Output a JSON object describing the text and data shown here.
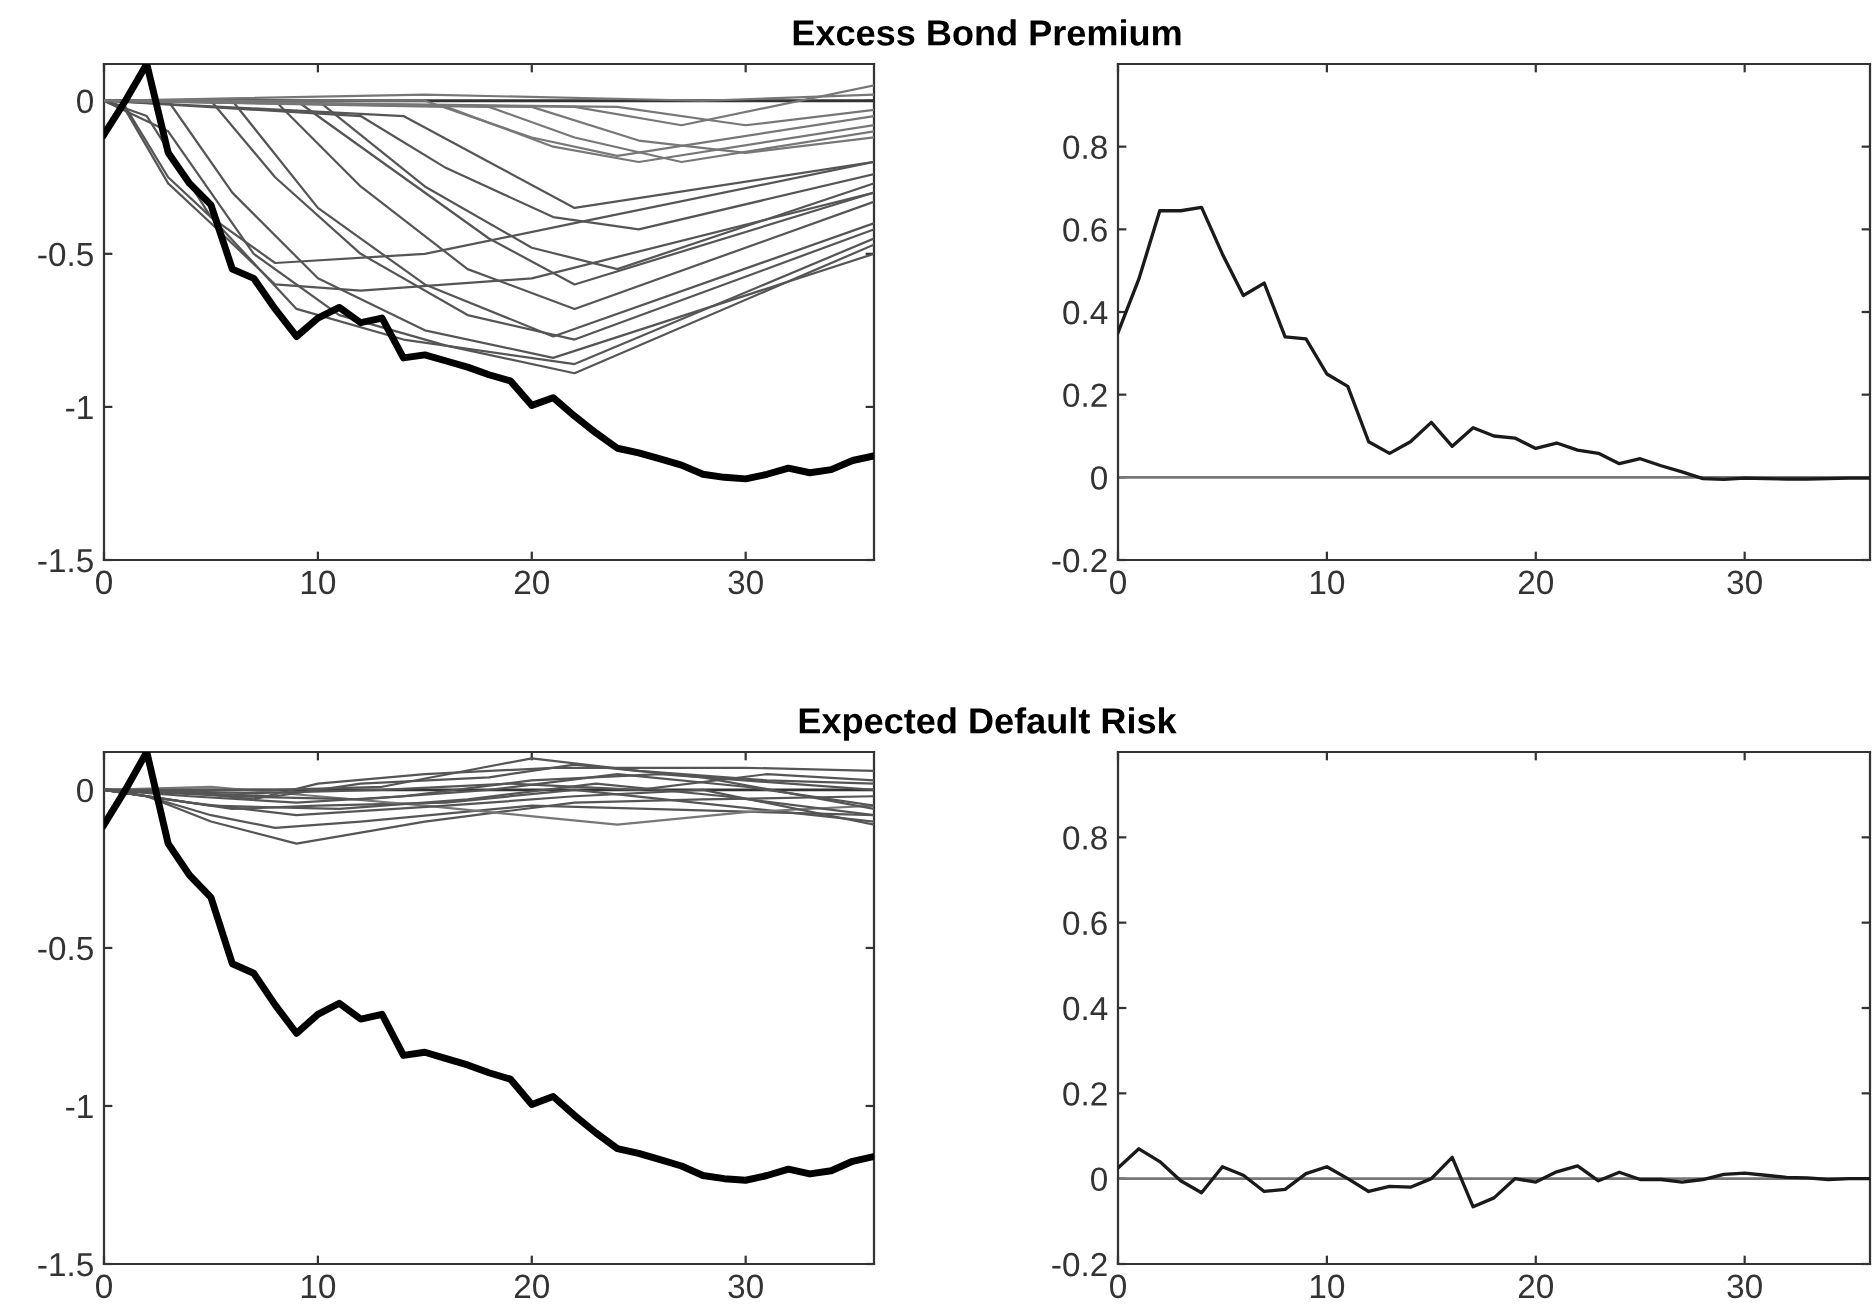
{
  "chart_data": [
    {
      "type": "line",
      "title": "Excess Bond Premium",
      "xlim": [
        0,
        36
      ],
      "xticks": [
        0,
        10,
        20,
        30
      ],
      "ylim": [
        -1.5,
        0.12
      ],
      "yticks": [
        -1.5,
        -1,
        -0.5,
        0
      ],
      "ref_lines": [
        {
          "axis": "y",
          "value": 0,
          "color": "#333333"
        }
      ],
      "series": [
        {
          "color": "#555555",
          "x": [
            0,
            1,
            3,
            5,
            8,
            15,
            22,
            36
          ],
          "values": [
            0,
            -0.02,
            -0.25,
            -0.38,
            -0.53,
            -0.5,
            -0.4,
            -0.2
          ]
        },
        {
          "color": "#555555",
          "x": [
            0,
            1,
            3,
            5,
            8,
            12,
            20,
            36
          ],
          "values": [
            0,
            -0.03,
            -0.27,
            -0.4,
            -0.6,
            -0.62,
            -0.58,
            -0.3
          ]
        },
        {
          "color": "#555555",
          "x": [
            0,
            2,
            5,
            9,
            14,
            22,
            36
          ],
          "values": [
            0,
            -0.05,
            -0.38,
            -0.68,
            -0.78,
            -0.86,
            -0.45
          ]
        },
        {
          "color": "#555555",
          "x": [
            0,
            3,
            7,
            11,
            16,
            22,
            36
          ],
          "values": [
            0,
            -0.1,
            -0.5,
            -0.7,
            -0.8,
            -0.89,
            -0.47
          ]
        },
        {
          "color": "#555555",
          "x": [
            0,
            3,
            6,
            10,
            15,
            21,
            36
          ],
          "values": [
            0,
            0,
            -0.3,
            -0.58,
            -0.75,
            -0.84,
            -0.5
          ]
        },
        {
          "color": "#555555",
          "x": [
            0,
            5,
            8,
            12,
            17,
            22,
            36
          ],
          "values": [
            0,
            0,
            -0.25,
            -0.5,
            -0.7,
            -0.78,
            -0.42
          ]
        },
        {
          "color": "#555555",
          "x": [
            0,
            6,
            10,
            15,
            21,
            36
          ],
          "values": [
            0,
            0,
            -0.35,
            -0.6,
            -0.77,
            -0.4
          ]
        },
        {
          "color": "#555555",
          "x": [
            0,
            8,
            12,
            17,
            22,
            36
          ],
          "values": [
            0,
            0,
            -0.28,
            -0.55,
            -0.68,
            -0.33
          ]
        },
        {
          "color": "#555555",
          "x": [
            0,
            9,
            13,
            18,
            22,
            36
          ],
          "values": [
            0,
            0,
            -0.2,
            -0.45,
            -0.6,
            -0.3
          ]
        },
        {
          "color": "#555555",
          "x": [
            0,
            10,
            15,
            20,
            24,
            36
          ],
          "values": [
            0,
            0,
            -0.28,
            -0.48,
            -0.55,
            -0.27
          ]
        },
        {
          "color": "#555555",
          "x": [
            0,
            12,
            16,
            21,
            25,
            36
          ],
          "values": [
            0,
            -0.05,
            -0.22,
            -0.38,
            -0.42,
            -0.24
          ]
        },
        {
          "color": "#555555",
          "x": [
            0,
            14,
            18,
            22,
            36
          ],
          "values": [
            0,
            -0.05,
            -0.2,
            -0.35,
            -0.2
          ]
        },
        {
          "color": "#777777",
          "x": [
            0,
            15,
            20,
            24,
            36
          ],
          "values": [
            0,
            0,
            -0.12,
            -0.18,
            -0.05
          ]
        },
        {
          "color": "#777777",
          "x": [
            0,
            16,
            21,
            25,
            36
          ],
          "values": [
            0,
            -0.02,
            -0.15,
            -0.2,
            -0.08
          ]
        },
        {
          "color": "#777777",
          "x": [
            0,
            18,
            22,
            27,
            36
          ],
          "values": [
            0,
            -0.02,
            -0.12,
            -0.2,
            -0.1
          ]
        },
        {
          "color": "#777777",
          "x": [
            0,
            20,
            25,
            30,
            36
          ],
          "values": [
            0,
            -0.02,
            -0.13,
            -0.17,
            -0.12
          ]
        },
        {
          "color": "#777777",
          "x": [
            0,
            22,
            27,
            36
          ],
          "values": [
            0,
            -0.02,
            -0.08,
            0.05
          ]
        },
        {
          "color": "#777777",
          "x": [
            0,
            24,
            30,
            36
          ],
          "values": [
            0,
            -0.02,
            -0.08,
            -0.03
          ]
        },
        {
          "color": "#777777",
          "x": [
            0,
            15,
            28,
            36
          ],
          "values": [
            0,
            0.02,
            0,
            0.02
          ]
        },
        {
          "color": "#000000",
          "x": [
            0,
            1,
            2,
            3,
            4,
            5,
            6,
            7,
            8,
            9,
            10,
            11,
            12,
            13,
            14,
            15,
            16,
            17,
            18,
            19,
            20,
            21,
            22,
            23,
            24,
            25,
            26,
            27,
            28,
            29,
            30,
            31,
            32,
            33,
            34,
            35,
            36
          ],
          "values": [
            -0.11,
            0,
            0.12,
            -0.17,
            -0.27,
            -0.34,
            -0.55,
            -0.58,
            -0.68,
            -0.77,
            -0.71,
            -0.675,
            -0.725,
            -0.71,
            -0.84,
            -0.83,
            -0.85,
            -0.87,
            -0.895,
            -0.915,
            -0.995,
            -0.97,
            -1.03,
            -1.085,
            -1.135,
            -1.15,
            -1.17,
            -1.19,
            -1.22,
            -1.23,
            -1.235,
            -1.22,
            -1.2,
            -1.215,
            -1.205,
            -1.175,
            -1.16
          ]
        }
      ]
    },
    {
      "type": "line",
      "xlim": [
        0,
        36
      ],
      "xticks": [
        0,
        10,
        20,
        30
      ],
      "ylim": [
        -0.2,
        1.0
      ],
      "yticks": [
        -0.2,
        0,
        0.2,
        0.4,
        0.6,
        0.8
      ],
      "ref_lines": [
        {
          "axis": "y",
          "value": 0,
          "color": "#777777"
        }
      ],
      "series": [
        {
          "color": "#1a1a1a",
          "x": [
            0,
            1,
            2,
            3,
            4,
            5,
            6,
            7,
            8,
            9,
            10,
            11,
            12,
            13,
            14,
            15,
            16,
            17,
            18,
            19,
            20,
            21,
            22,
            23,
            24,
            25,
            26,
            27,
            28,
            29,
            30,
            31,
            32,
            33,
            34,
            35,
            36
          ],
          "values": [
            0.35,
            0.48,
            0.645,
            0.645,
            0.653,
            0.54,
            0.44,
            0.47,
            0.34,
            0.335,
            0.25,
            0.22,
            0.086,
            0.058,
            0.086,
            0.133,
            0.075,
            0.12,
            0.1,
            0.095,
            0.07,
            0.083,
            0.066,
            0.058,
            0.033,
            0.045,
            0.028,
            0.013,
            -0.003,
            -0.005,
            -0.002,
            -0.003,
            -0.004,
            -0.004,
            -0.003,
            -0.002,
            -0.002
          ]
        }
      ]
    },
    {
      "type": "line",
      "title": "Expected Default Risk",
      "xlim": [
        0,
        36
      ],
      "xticks": [
        0,
        10,
        20,
        30
      ],
      "ylim": [
        -1.5,
        0.12
      ],
      "yticks": [
        -1.5,
        -1,
        -0.5,
        0
      ],
      "ref_lines": [
        {
          "axis": "y",
          "value": 0,
          "color": "#333333"
        }
      ],
      "series": [
        {
          "color": "#555555",
          "x": [
            0,
            2,
            5,
            9,
            15,
            22,
            28,
            36
          ],
          "values": [
            0,
            -0.02,
            -0.1,
            -0.17,
            -0.1,
            -0.04,
            -0.03,
            -0.02
          ]
        },
        {
          "color": "#555555",
          "x": [
            0,
            2,
            5,
            8,
            12,
            20,
            36
          ],
          "values": [
            0,
            -0.02,
            -0.08,
            -0.12,
            -0.1,
            -0.05,
            -0.08
          ]
        },
        {
          "color": "#555555",
          "x": [
            0,
            3,
            6,
            10,
            16,
            22,
            36
          ],
          "values": [
            0,
            -0.03,
            -0.06,
            -0.05,
            -0.04,
            0.0,
            -0.1
          ]
        },
        {
          "color": "#555555",
          "x": [
            0,
            3,
            7,
            10,
            15,
            21,
            30,
            36
          ],
          "values": [
            0,
            0,
            -0.03,
            0.02,
            0.05,
            0.07,
            0.07,
            0.06
          ]
        },
        {
          "color": "#555555",
          "x": [
            0,
            4,
            9,
            14,
            20,
            26,
            36
          ],
          "values": [
            0,
            -0.02,
            -0.04,
            -0.02,
            0.03,
            0.05,
            0
          ]
        },
        {
          "color": "#777777",
          "x": [
            0,
            5,
            10,
            15,
            21,
            24,
            30,
            36
          ],
          "values": [
            0,
            0.01,
            -0.02,
            -0.05,
            -0.09,
            -0.11,
            -0.07,
            -0.05
          ]
        },
        {
          "color": "#555555",
          "x": [
            0,
            4,
            8,
            12,
            18,
            22,
            28,
            36
          ],
          "values": [
            0,
            -0.01,
            -0.02,
            0.02,
            0.04,
            0.08,
            0.04,
            -0.06
          ]
        },
        {
          "color": "#555555",
          "x": [
            0,
            3,
            8,
            13,
            20,
            25,
            31,
            36
          ],
          "values": [
            0,
            0,
            0,
            0.01,
            0.1,
            0.06,
            0.03,
            0.02
          ]
        },
        {
          "color": "#555555",
          "x": [
            0,
            5,
            11,
            17,
            23,
            29,
            36
          ],
          "values": [
            0,
            -0.05,
            -0.06,
            -0.03,
            0.02,
            -0.02,
            -0.08
          ]
        },
        {
          "color": "#555555",
          "x": [
            0,
            6,
            12,
            18,
            24,
            30,
            36
          ],
          "values": [
            0,
            -0.02,
            -0.03,
            0,
            0.05,
            0.01,
            -0.05
          ]
        },
        {
          "color": "#555555",
          "x": [
            0,
            7,
            13,
            19,
            25,
            31,
            36
          ],
          "values": [
            0,
            -0.01,
            0,
            0.02,
            0,
            0.05,
            0.03
          ]
        },
        {
          "color": "#555555",
          "x": [
            0,
            4,
            9,
            16,
            22,
            28,
            36
          ],
          "values": [
            0,
            -0.04,
            -0.08,
            -0.05,
            -0.02,
            0,
            -0.11
          ]
        },
        {
          "color": "#000000",
          "x": [
            0,
            1,
            2,
            3,
            4,
            5,
            6,
            7,
            8,
            9,
            10,
            11,
            12,
            13,
            14,
            15,
            16,
            17,
            18,
            19,
            20,
            21,
            22,
            23,
            24,
            25,
            26,
            27,
            28,
            29,
            30,
            31,
            32,
            33,
            34,
            35,
            36
          ],
          "values": [
            -0.11,
            0,
            0.12,
            -0.17,
            -0.27,
            -0.34,
            -0.55,
            -0.58,
            -0.68,
            -0.77,
            -0.71,
            -0.675,
            -0.725,
            -0.71,
            -0.84,
            -0.83,
            -0.85,
            -0.87,
            -0.895,
            -0.915,
            -0.995,
            -0.97,
            -1.03,
            -1.085,
            -1.135,
            -1.15,
            -1.17,
            -1.19,
            -1.22,
            -1.23,
            -1.235,
            -1.22,
            -1.2,
            -1.215,
            -1.205,
            -1.175,
            -1.16
          ]
        }
      ]
    },
    {
      "type": "line",
      "xlim": [
        0,
        36
      ],
      "xticks": [
        0,
        10,
        20,
        30
      ],
      "ylim": [
        -0.2,
        1.0
      ],
      "yticks": [
        -0.2,
        0,
        0.2,
        0.4,
        0.6,
        0.8
      ],
      "ref_lines": [
        {
          "axis": "y",
          "value": 0,
          "color": "#777777"
        }
      ],
      "series": [
        {
          "color": "#1a1a1a",
          "x": [
            0,
            1,
            2,
            3,
            4,
            5,
            6,
            7,
            8,
            9,
            10,
            11,
            12,
            13,
            14,
            15,
            16,
            17,
            18,
            19,
            20,
            21,
            22,
            23,
            24,
            25,
            26,
            27,
            28,
            29,
            30,
            31,
            32,
            33,
            34,
            35,
            36
          ],
          "values": [
            0.025,
            0.07,
            0.04,
            -0.005,
            -0.033,
            0.028,
            0.008,
            -0.03,
            -0.025,
            0.012,
            0.028,
            0,
            -0.03,
            -0.018,
            -0.02,
            0,
            0.05,
            -0.066,
            -0.045,
            0,
            -0.008,
            0.016,
            0.03,
            -0.005,
            0.015,
            -0.002,
            -0.002,
            -0.008,
            -0.002,
            0.01,
            0.013,
            0.008,
            0.003,
            0.002,
            -0.002,
            0,
            0
          ]
        }
      ]
    }
  ]
}
